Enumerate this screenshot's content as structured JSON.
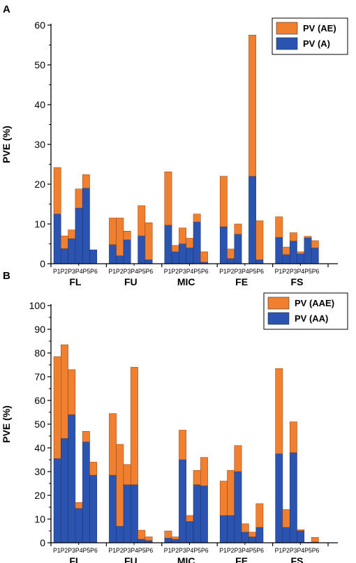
{
  "colors": {
    "bottom": "#2b54b0",
    "top": "#f07f2f",
    "axis": "#000000"
  },
  "chart_data": [
    {
      "panel": "A",
      "type": "bar",
      "stacked": true,
      "ylabel": "PVE (%)",
      "ylim": [
        0,
        60
      ],
      "yticks": [
        "0",
        "10",
        "20",
        "30",
        "40",
        "50",
        "60"
      ],
      "legend": [
        "PV (AE)",
        "PV (A)"
      ],
      "legend_position": "top-right",
      "groups": [
        "FL",
        "FU",
        "MIC",
        "FE",
        "FS"
      ],
      "sub_label": "P1P2P3P4P5P6",
      "series": [
        {
          "name": "PV (A)",
          "role": "bottom",
          "values": [
            [
              12.5,
              3.8,
              6.3,
              14,
              19,
              3.5
            ],
            [
              4.8,
              2.0,
              6.0,
              0,
              7.0,
              1.0
            ],
            [
              9.7,
              3.0,
              5.0,
              4.0,
              10.5,
              0.4
            ],
            [
              9.3,
              1.3,
              7.4,
              0,
              22.0,
              1.0
            ],
            [
              6.6,
              2.3,
              5.7,
              2.5,
              6.5,
              4.0
            ]
          ]
        },
        {
          "name": "PV (AE)",
          "role": "top",
          "values": [
            [
              11.7,
              3.2,
              2.2,
              4.8,
              3.4,
              0
            ],
            [
              6.7,
              9.5,
              2.2,
              0,
              7.6,
              9.3
            ],
            [
              13.4,
              1.6,
              4.0,
              2.4,
              2.0,
              2.6
            ],
            [
              12.7,
              2.4,
              2.6,
              0,
              35.5,
              9.8
            ],
            [
              5.2,
              1.9,
              2.1,
              0.5,
              0.4,
              1.8
            ]
          ]
        }
      ]
    },
    {
      "panel": "B",
      "type": "bar",
      "stacked": true,
      "ylabel": "PVE (%)",
      "ylim": [
        0,
        100
      ],
      "yticks": [
        "0",
        "10",
        "20",
        "30",
        "40",
        "50",
        "60",
        "70",
        "80",
        "90",
        "100"
      ],
      "legend": [
        "PV (AAE)",
        "PV (AA)"
      ],
      "legend_position": "top-right",
      "groups": [
        "FL",
        "FU",
        "MIC",
        "FE",
        "FS"
      ],
      "sub_label": "P1P2P3P4P5P6",
      "series": [
        {
          "name": "PV (AA)",
          "role": "bottom",
          "values": [
            [
              35.5,
              44,
              54,
              14.5,
              42.5,
              28.5
            ],
            [
              28.5,
              7.0,
              24.5,
              24.5,
              1.5,
              1.0
            ],
            [
              2.0,
              1.5,
              35.0,
              9.0,
              24.5,
              24.0
            ],
            [
              11.5,
              11.5,
              30.0,
              4.5,
              2.5,
              6.5
            ],
            [
              37.5,
              6.5,
              38.0,
              5.0,
              0.2,
              0.3
            ]
          ]
        },
        {
          "name": "PV (AAE)",
          "role": "top",
          "values": [
            [
              43.0,
              39.5,
              19.0,
              2.5,
              4.5,
              5.5
            ],
            [
              26.0,
              34.5,
              8.5,
              49.5,
              3.8,
              1.5
            ],
            [
              3.0,
              1.0,
              12.5,
              2.5,
              6.0,
              12.0
            ],
            [
              14.5,
              19.0,
              11.0,
              3.5,
              2.0,
              10.0
            ],
            [
              36.0,
              7.5,
              13.0,
              0.5,
              0,
              2.0
            ]
          ]
        }
      ]
    }
  ]
}
